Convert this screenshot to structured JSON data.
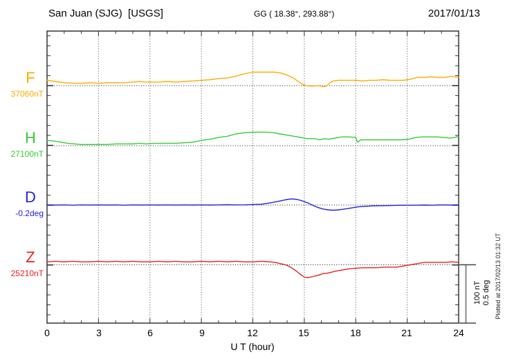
{
  "header": {
    "station": "San Juan (SJG)  [USGS]",
    "coordinates": "GG ( 18.38°, 293.88°)",
    "date": "2017/01/13"
  },
  "channels": [
    {
      "label": "F",
      "baseline_value": "37060nT",
      "color": "#FFAA00"
    },
    {
      "label": "H",
      "baseline_value": "27100nT",
      "color": "#33CC33"
    },
    {
      "label": "D",
      "baseline_value": "-0.2deg",
      "color": "#2222DD"
    },
    {
      "label": "Z",
      "baseline_value": "25210nT",
      "color": "#E82020"
    }
  ],
  "x_axis": {
    "label": "U T (hour)",
    "ticks": [
      "0",
      "3",
      "6",
      "9",
      "12",
      "15",
      "18",
      "21",
      "24"
    ]
  },
  "scale_bar": {
    "nt_label": "100 nT",
    "deg_label": "0.5 deg"
  },
  "plotted_note": "Plotted at 2017/02/13 01:32 UT",
  "chart_data": {
    "type": "line",
    "title": "San Juan (SJG) [USGS] magnetogram, 2017/01/13",
    "xlabel": "U T (hour)",
    "x_range": [
      0,
      24
    ],
    "x_tick_step": 3,
    "grid": "dotted vertical gridlines every 3 h; dotted horizontal baseline per channel",
    "scale_per_division": {
      "field_nT": 100,
      "declination_deg": 0.5
    },
    "series": [
      {
        "name": "F",
        "unit": "nT",
        "base": 37060,
        "points": [
          [
            0,
            37069
          ],
          [
            0.5,
            37067
          ],
          [
            1,
            37065
          ],
          [
            1.5,
            37064
          ],
          [
            2,
            37064
          ],
          [
            2.5,
            37065
          ],
          [
            3,
            37064
          ],
          [
            3.5,
            37065
          ],
          [
            4,
            37065
          ],
          [
            4.5,
            37065
          ],
          [
            5,
            37066
          ],
          [
            5.4,
            37067
          ],
          [
            5.7,
            37066
          ],
          [
            6,
            37066
          ],
          [
            6.5,
            37066
          ],
          [
            7,
            37067
          ],
          [
            7.5,
            37066
          ],
          [
            8,
            37067
          ],
          [
            8.5,
            37068
          ],
          [
            9,
            37069
          ],
          [
            9.5,
            37070
          ],
          [
            10,
            37072
          ],
          [
            10.5,
            37073
          ],
          [
            11,
            37076
          ],
          [
            11.5,
            37080
          ],
          [
            12,
            37083
          ],
          [
            12.5,
            37083
          ],
          [
            13,
            37083
          ],
          [
            13.3,
            37083
          ],
          [
            13.7,
            37081
          ],
          [
            14,
            37078
          ],
          [
            14.3,
            37074
          ],
          [
            14.6,
            37068
          ],
          [
            14.9,
            37062
          ],
          [
            15.1,
            37060
          ],
          [
            15.4,
            37059
          ],
          [
            15.8,
            37060
          ],
          [
            16.1,
            37058
          ],
          [
            16.3,
            37059
          ],
          [
            16.5,
            37065
          ],
          [
            16.7,
            37068
          ],
          [
            17,
            37069
          ],
          [
            17.4,
            37069
          ],
          [
            17.7,
            37069
          ],
          [
            18,
            37069
          ],
          [
            18.4,
            37068
          ],
          [
            18.8,
            37069
          ],
          [
            19.2,
            37069
          ],
          [
            19.6,
            37070
          ],
          [
            20,
            37069
          ],
          [
            20.4,
            37069
          ],
          [
            20.8,
            37069
          ],
          [
            21.2,
            37071
          ],
          [
            21.6,
            37074
          ],
          [
            22,
            37074
          ],
          [
            22.4,
            37075
          ],
          [
            22.8,
            37074
          ],
          [
            23.2,
            37074
          ],
          [
            23.6,
            37076
          ],
          [
            24,
            37074
          ]
        ]
      },
      {
        "name": "H",
        "unit": "nT",
        "base": 27100,
        "points": [
          [
            0,
            27109
          ],
          [
            0.4,
            27108
          ],
          [
            0.8,
            27106
          ],
          [
            1.2,
            27104
          ],
          [
            1.6,
            27103
          ],
          [
            2,
            27102
          ],
          [
            2.5,
            27102
          ],
          [
            3,
            27102
          ],
          [
            3.5,
            27102
          ],
          [
            4,
            27103
          ],
          [
            4.5,
            27103
          ],
          [
            5,
            27103
          ],
          [
            5.4,
            27104
          ],
          [
            5.8,
            27103
          ],
          [
            6.2,
            27104
          ],
          [
            6.6,
            27104
          ],
          [
            7,
            27104
          ],
          [
            7.5,
            27104
          ],
          [
            8,
            27105
          ],
          [
            8.5,
            27106
          ],
          [
            9,
            27109
          ],
          [
            9.5,
            27111
          ],
          [
            10,
            27114
          ],
          [
            10.5,
            27116
          ],
          [
            11,
            27120
          ],
          [
            11.5,
            27122
          ],
          [
            12,
            27123
          ],
          [
            12.4,
            27123
          ],
          [
            12.8,
            27123
          ],
          [
            13.2,
            27122
          ],
          [
            13.6,
            27120
          ],
          [
            14,
            27118
          ],
          [
            14.4,
            27116
          ],
          [
            14.8,
            27114
          ],
          [
            15.2,
            27112
          ],
          [
            15.6,
            27112
          ],
          [
            15.9,
            27110
          ],
          [
            16.2,
            27112
          ],
          [
            16.4,
            27111
          ],
          [
            16.8,
            27113
          ],
          [
            17.2,
            27115
          ],
          [
            17.6,
            27115
          ],
          [
            18,
            27114
          ],
          [
            18.1,
            27106
          ],
          [
            18.3,
            27110
          ],
          [
            18.7,
            27110
          ],
          [
            19.2,
            27110
          ],
          [
            19.7,
            27110
          ],
          [
            20.2,
            27110
          ],
          [
            20.7,
            27110
          ],
          [
            21.1,
            27111
          ],
          [
            21.5,
            27114
          ],
          [
            21.9,
            27115
          ],
          [
            22.3,
            27115
          ],
          [
            22.7,
            27115
          ],
          [
            23.1,
            27114
          ],
          [
            23.5,
            27113
          ],
          [
            23.8,
            27114
          ],
          [
            24,
            27116
          ]
        ]
      },
      {
        "name": "D",
        "unit": "deg",
        "base": -0.2,
        "points": [
          [
            0,
            -0.199
          ],
          [
            0.5,
            -0.2
          ],
          [
            1,
            -0.199
          ],
          [
            1.5,
            -0.201
          ],
          [
            2,
            -0.199
          ],
          [
            2.5,
            -0.2
          ],
          [
            3,
            -0.199
          ],
          [
            3.5,
            -0.2
          ],
          [
            4,
            -0.199
          ],
          [
            4.5,
            -0.201
          ],
          [
            5,
            -0.199
          ],
          [
            5.5,
            -0.2
          ],
          [
            6,
            -0.199
          ],
          [
            6.5,
            -0.2
          ],
          [
            7,
            -0.199
          ],
          [
            7.5,
            -0.2
          ],
          [
            8,
            -0.199
          ],
          [
            8.5,
            -0.2
          ],
          [
            9,
            -0.199
          ],
          [
            9.5,
            -0.2
          ],
          [
            10,
            -0.199
          ],
          [
            10.5,
            -0.197
          ],
          [
            11,
            -0.199
          ],
          [
            11.5,
            -0.198
          ],
          [
            12,
            -0.196
          ],
          [
            12.5,
            -0.193
          ],
          [
            13,
            -0.182
          ],
          [
            13.4,
            -0.171
          ],
          [
            13.8,
            -0.158
          ],
          [
            14.1,
            -0.15
          ],
          [
            14.35,
            -0.148
          ],
          [
            14.6,
            -0.153
          ],
          [
            14.9,
            -0.165
          ],
          [
            15.2,
            -0.182
          ],
          [
            15.5,
            -0.203
          ],
          [
            15.8,
            -0.221
          ],
          [
            16.1,
            -0.234
          ],
          [
            16.4,
            -0.241
          ],
          [
            16.7,
            -0.244
          ],
          [
            17,
            -0.241
          ],
          [
            17.3,
            -0.235
          ],
          [
            17.7,
            -0.226
          ],
          [
            18.1,
            -0.216
          ],
          [
            18.5,
            -0.211
          ],
          [
            19,
            -0.207
          ],
          [
            19.5,
            -0.205
          ],
          [
            20,
            -0.204
          ],
          [
            20.5,
            -0.202
          ],
          [
            21,
            -0.202
          ],
          [
            21.5,
            -0.201
          ],
          [
            22,
            -0.2
          ],
          [
            22.5,
            -0.201
          ],
          [
            23,
            -0.199
          ],
          [
            23.5,
            -0.2
          ],
          [
            24,
            -0.199
          ]
        ]
      },
      {
        "name": "Z",
        "unit": "nT",
        "base": 25210,
        "points": [
          [
            0,
            25215
          ],
          [
            0.5,
            25216
          ],
          [
            1,
            25215
          ],
          [
            1.5,
            25216
          ],
          [
            2,
            25215
          ],
          [
            2.5,
            25215
          ],
          [
            3,
            25216
          ],
          [
            3.5,
            25215
          ],
          [
            4,
            25216
          ],
          [
            4.5,
            25215
          ],
          [
            5,
            25216
          ],
          [
            5.5,
            25215
          ],
          [
            6,
            25215
          ],
          [
            6.5,
            25216
          ],
          [
            7,
            25215
          ],
          [
            7.5,
            25216
          ],
          [
            8,
            25215
          ],
          [
            8.5,
            25215
          ],
          [
            9,
            25216
          ],
          [
            9.5,
            25215
          ],
          [
            10,
            25216
          ],
          [
            10.5,
            25215
          ],
          [
            11,
            25216
          ],
          [
            11.5,
            25215
          ],
          [
            12,
            25215
          ],
          [
            12.5,
            25216
          ],
          [
            13,
            25215
          ],
          [
            13.3,
            25214
          ],
          [
            13.6,
            25212
          ],
          [
            13.9,
            25210
          ],
          [
            14.2,
            25206
          ],
          [
            14.5,
            25200
          ],
          [
            14.8,
            25193
          ],
          [
            15,
            25189
          ],
          [
            15.2,
            25188
          ],
          [
            15.5,
            25190
          ],
          [
            15.8,
            25192
          ],
          [
            16.1,
            25195
          ],
          [
            16.4,
            25196
          ],
          [
            16.8,
            25199
          ],
          [
            17.2,
            25201
          ],
          [
            17.6,
            25203
          ],
          [
            18,
            25204
          ],
          [
            18.4,
            25205
          ],
          [
            18.8,
            25205
          ],
          [
            19.2,
            25205
          ],
          [
            19.6,
            25206
          ],
          [
            20,
            25206
          ],
          [
            20.4,
            25206
          ],
          [
            20.8,
            25208
          ],
          [
            21.2,
            25210
          ],
          [
            21.6,
            25212
          ],
          [
            22,
            25214
          ],
          [
            22.4,
            25214
          ],
          [
            22.8,
            25214
          ],
          [
            23.2,
            25214
          ],
          [
            23.6,
            25215
          ],
          [
            24,
            25214
          ]
        ]
      }
    ]
  }
}
